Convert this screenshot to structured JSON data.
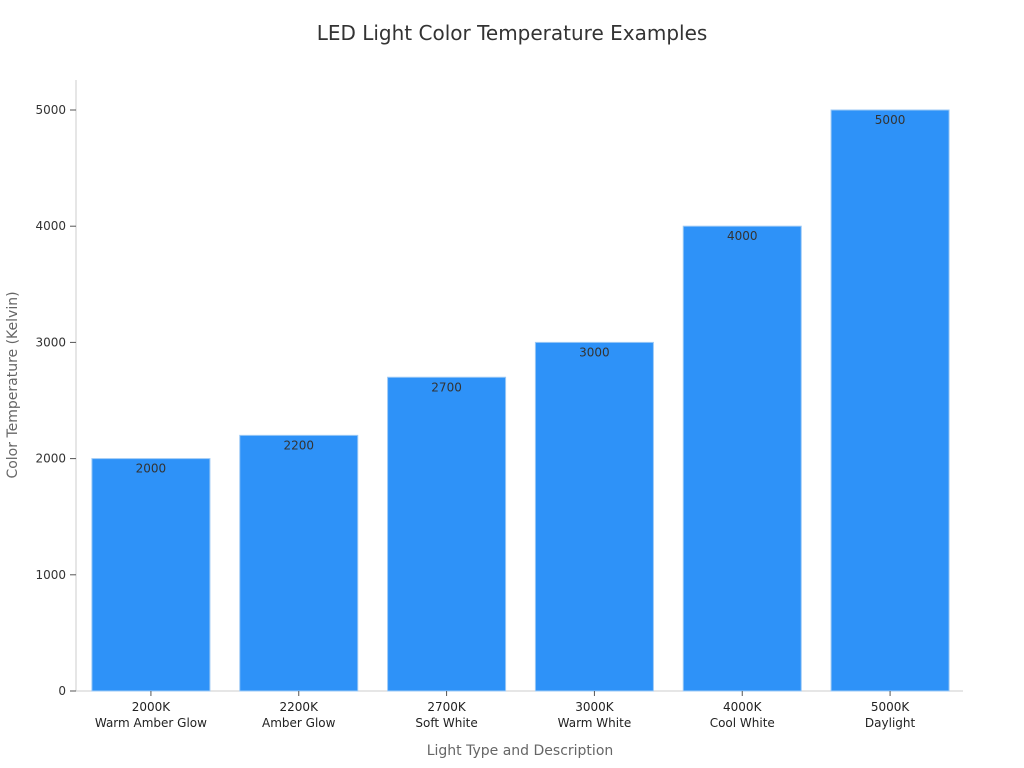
{
  "chart_data": {
    "type": "bar",
    "title": "LED Light Color Temperature Examples",
    "xlabel": "Light Type and Description",
    "ylabel": "Color Temperature (Kelvin)",
    "categories": [
      [
        "2000K",
        "Warm Amber Glow"
      ],
      [
        "2200K",
        "Amber Glow"
      ],
      [
        "2700K",
        "Soft White"
      ],
      [
        "3000K",
        "Warm White"
      ],
      [
        "4000K",
        "Cool White"
      ],
      [
        "5000K",
        "Daylight"
      ]
    ],
    "values": [
      2000,
      2200,
      2700,
      3000,
      4000,
      5000
    ],
    "data_labels": [
      "2000",
      "2200",
      "2700",
      "3000",
      "4000",
      "5000"
    ],
    "yticks": [
      0,
      1000,
      2000,
      3000,
      4000,
      5000
    ],
    "ylim": [
      0,
      5260
    ],
    "grid": false,
    "colors": {
      "bar": "#2e92f8",
      "bar_edge": "#9cc9f5",
      "axis": "#cccccc",
      "text": "#333333"
    }
  }
}
